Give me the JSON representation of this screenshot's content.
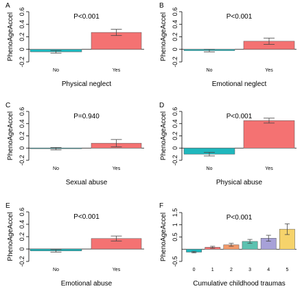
{
  "chart_data": [
    {
      "type": "bar",
      "panel": "A",
      "pvalue": "P<0.001",
      "xlabel": "Physical neglect",
      "ylabel": "PhenoAgeAccel",
      "categories": [
        "No",
        "Yes"
      ],
      "values": [
        -0.04,
        0.27
      ],
      "errors": [
        0.02,
        0.05
      ],
      "colors": [
        "#1fb7bd",
        "#f47272"
      ],
      "ylim": [
        -0.2,
        0.6
      ],
      "yticks": [
        "-0.2",
        "0",
        "0.2",
        "0.4",
        "0.6"
      ]
    },
    {
      "type": "bar",
      "panel": "B",
      "pvalue": "P<0.001",
      "xlabel": "Emotional neglect",
      "ylabel": "PhenoAgeAccel",
      "categories": [
        "No",
        "Yes"
      ],
      "values": [
        -0.02,
        0.13
      ],
      "errors": [
        0.02,
        0.05
      ],
      "colors": [
        "#1fb7bd",
        "#f47272"
      ],
      "ylim": [
        -0.2,
        0.6
      ],
      "yticks": [
        "-0.2",
        "0",
        "0.2",
        "0.4",
        "0.6"
      ]
    },
    {
      "type": "bar",
      "panel": "C",
      "pvalue": "P=0.940",
      "xlabel": "Sexual abuse",
      "ylabel": "PhenoAgeAccel",
      "categories": [
        "No",
        "Yes"
      ],
      "values": [
        -0.01,
        0.08
      ],
      "errors": [
        0.02,
        0.06
      ],
      "colors": [
        "#1fb7bd",
        "#f47272"
      ],
      "ylim": [
        -0.2,
        0.6
      ],
      "yticks": [
        "-0.2",
        "0",
        "0.2",
        "0.4",
        "0.6"
      ]
    },
    {
      "type": "bar",
      "panel": "D",
      "pvalue": "P<0.001",
      "xlabel": "Physical abuse",
      "ylabel": "PhenoAgeAccel",
      "categories": [
        "No",
        "Yes"
      ],
      "values": [
        -0.1,
        0.45
      ],
      "errors": [
        0.03,
        0.04
      ],
      "colors": [
        "#1fb7bd",
        "#f47272"
      ],
      "ylim": [
        -0.2,
        0.6
      ],
      "yticks": [
        "-0.2",
        "0",
        "0.2",
        "0.4",
        "0.6"
      ]
    },
    {
      "type": "bar",
      "panel": "E",
      "pvalue": "P<0.001",
      "xlabel": "Emotional abuse",
      "ylabel": "PhenoAgeAccel",
      "categories": [
        "No",
        "Yes"
      ],
      "values": [
        -0.03,
        0.17
      ],
      "errors": [
        0.02,
        0.04
      ],
      "colors": [
        "#1fb7bd",
        "#f47272"
      ],
      "ylim": [
        -0.2,
        0.6
      ],
      "yticks": [
        "-0.2",
        "0",
        "0.2",
        "0.4",
        "0.6"
      ]
    },
    {
      "type": "bar",
      "panel": "F",
      "pvalue": "P<0.001",
      "xlabel": "Cumulative childhood traumas",
      "ylabel": "PhenoAgeAccel",
      "categories": [
        "0",
        "1",
        "2",
        "3",
        "4",
        "5"
      ],
      "values": [
        -0.12,
        0.08,
        0.18,
        0.32,
        0.45,
        0.82
      ],
      "errors": [
        0.03,
        0.04,
        0.06,
        0.08,
        0.12,
        0.22
      ],
      "colors": [
        "#1fb7bd",
        "#f47272",
        "#f39a6a",
        "#5cc1b0",
        "#a7a1d8",
        "#f6d36b"
      ],
      "ylim": [
        -0.5,
        1.5
      ],
      "yticks": [
        "-0.5",
        "0.5",
        "1",
        "1.5"
      ]
    }
  ]
}
